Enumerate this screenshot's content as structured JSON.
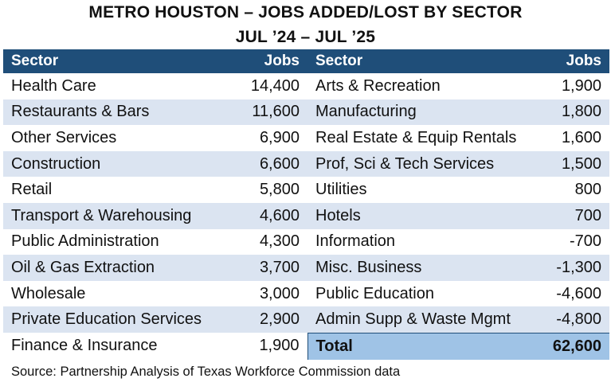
{
  "chart_data": {
    "type": "table",
    "title": "METRO HOUSTON – JOBS ADDED/LOST BY SECTOR",
    "subtitle": "JUL ’24 – JUL ’25",
    "columns": [
      "Sector",
      "Jobs",
      "Sector",
      "Jobs"
    ],
    "left_rows": [
      {
        "sector": "Health Care",
        "jobs": "14,400"
      },
      {
        "sector": "Restaurants & Bars",
        "jobs": "11,600"
      },
      {
        "sector": "Other Services",
        "jobs": "6,900"
      },
      {
        "sector": "Construction",
        "jobs": "6,600"
      },
      {
        "sector": "Retail",
        "jobs": "5,800"
      },
      {
        "sector": "Transport & Warehousing",
        "jobs": "4,600"
      },
      {
        "sector": "Public Administration",
        "jobs": "4,300"
      },
      {
        "sector": "Oil & Gas Extraction",
        "jobs": "3,700"
      },
      {
        "sector": "Wholesale",
        "jobs": "3,000"
      },
      {
        "sector": "Private Education Services",
        "jobs": "2,900"
      },
      {
        "sector": "Finance & Insurance",
        "jobs": "1,900"
      }
    ],
    "right_rows": [
      {
        "sector": "Arts & Recreation",
        "jobs": "1,900"
      },
      {
        "sector": "Manufacturing",
        "jobs": "1,800"
      },
      {
        "sector": "Real Estate & Equip Rentals",
        "jobs": "1,600"
      },
      {
        "sector": "Prof, Sci & Tech Services",
        "jobs": "1,500"
      },
      {
        "sector": "Utilities",
        "jobs": "800"
      },
      {
        "sector": "Hotels",
        "jobs": "700"
      },
      {
        "sector": "Information",
        "jobs": "-700"
      },
      {
        "sector": "Misc. Business",
        "jobs": "-1,300"
      },
      {
        "sector": "Public Education",
        "jobs": "-4,600"
      },
      {
        "sector": "Admin Supp & Waste Mgmt",
        "jobs": "-4,800"
      }
    ],
    "total": {
      "label": "Total",
      "jobs": "62,600"
    },
    "source": "Source: Partnership Analysis of Texas Workforce Commission data"
  },
  "colors": {
    "header_bg": "#1f4e79",
    "header_text": "#ffffff",
    "band": "#dbe4f1",
    "total_bg": "#9fc3e6"
  }
}
